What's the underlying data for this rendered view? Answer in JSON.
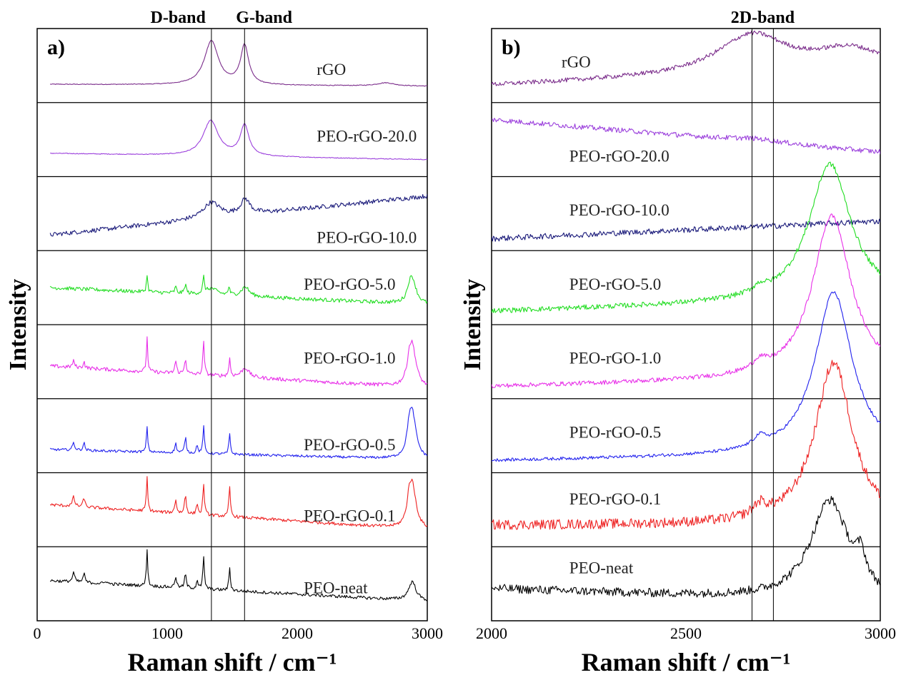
{
  "chart_data": [
    {
      "type": "line",
      "panel_label": "a)",
      "xlabel": "Raman shift / cm⁻¹",
      "ylabel": "Intensity",
      "xlim": [
        0,
        3000
      ],
      "ylim": [
        0,
        1
      ],
      "xticks": [
        0,
        1000,
        2000,
        3000
      ],
      "x_start": 100,
      "band_markers": [
        {
          "name": "D-band",
          "x": 1340
        },
        {
          "name": "G-band",
          "x": 1595
        }
      ],
      "series": [
        {
          "name": "rGO",
          "color": "#7b2d8b",
          "label_x": 2150,
          "label_pos": 0.45,
          "base_start": 0.2,
          "base_end": 0.17,
          "noise": 0.006,
          "peaks": [
            [
              1340,
              0.7,
              65
            ],
            [
              1595,
              0.62,
              38
            ],
            [
              2680,
              0.05,
              80
            ]
          ]
        },
        {
          "name": "PEO-rGO-20.0",
          "color": "#9b3fdc",
          "label_x": 2150,
          "label_pos": 0.55,
          "base_start": 0.28,
          "base_end": 0.18,
          "noise": 0.006,
          "peaks": [
            [
              1335,
              0.56,
              70
            ],
            [
              1595,
              0.49,
              40
            ]
          ]
        },
        {
          "name": "PEO-rGO-10.0",
          "color": "#1a1a7a",
          "label_x": 2150,
          "label_pos": 0.18,
          "base_start": 0.16,
          "base_end": 0.78,
          "noise": 0.035,
          "peaks": [
            [
              1340,
              0.25,
              80
            ],
            [
              1600,
              0.24,
              45
            ]
          ]
        },
        {
          "name": "PEO-rGO-5.0",
          "color": "#22dd22",
          "label_x": 2050,
          "label_pos": 0.55,
          "base_start": 0.5,
          "base_end": 0.23,
          "noise": 0.03,
          "peaks": [
            [
              845,
              0.28,
              6
            ],
            [
              1065,
              0.1,
              8
            ],
            [
              1140,
              0.15,
              8
            ],
            [
              1280,
              0.25,
              7
            ],
            [
              1340,
              0.1,
              50
            ],
            [
              1475,
              0.13,
              7
            ],
            [
              1600,
              0.15,
              35
            ],
            [
              2885,
              0.4,
              35
            ],
            [
              2860,
              0.1,
              18
            ]
          ]
        },
        {
          "name": "PEO-rGO-1.0",
          "color": "#e830e8",
          "label_x": 2050,
          "label_pos": 0.55,
          "base_start": 0.43,
          "base_end": 0.08,
          "noise": 0.03,
          "peaks": [
            [
              845,
              0.55,
              6
            ],
            [
              1065,
              0.2,
              8
            ],
            [
              1140,
              0.25,
              8
            ],
            [
              1280,
              0.52,
              7
            ],
            [
              1480,
              0.28,
              7
            ],
            [
              1600,
              0.15,
              35
            ],
            [
              2885,
              0.65,
              35
            ],
            [
              2860,
              0.2,
              18
            ],
            [
              280,
              0.1,
              10
            ],
            [
              360,
              0.1,
              8
            ]
          ]
        },
        {
          "name": "PEO-rGO-0.5",
          "color": "#2222ee",
          "label_x": 2050,
          "label_pos": 0.38,
          "base_start": 0.28,
          "base_end": 0.12,
          "noise": 0.02,
          "peaks": [
            [
              845,
              0.42,
              6
            ],
            [
              1065,
              0.15,
              8
            ],
            [
              1140,
              0.25,
              8
            ],
            [
              1230,
              0.15,
              6
            ],
            [
              1280,
              0.43,
              7
            ],
            [
              1480,
              0.32,
              7
            ],
            [
              2885,
              0.72,
              35
            ],
            [
              2860,
              0.25,
              18
            ],
            [
              280,
              0.12,
              10
            ],
            [
              360,
              0.12,
              8
            ]
          ]
        },
        {
          "name": "PEO-rGO-0.1",
          "color": "#ee2222",
          "label_x": 2050,
          "label_pos": 0.42,
          "base_start": 0.58,
          "base_end": 0.18,
          "noise": 0.025,
          "peaks": [
            [
              845,
              0.55,
              6
            ],
            [
              1065,
              0.22,
              8
            ],
            [
              1140,
              0.3,
              8
            ],
            [
              1230,
              0.2,
              6
            ],
            [
              1280,
              0.5,
              7
            ],
            [
              1480,
              0.48,
              7
            ],
            [
              2885,
              0.68,
              35
            ],
            [
              2860,
              0.25,
              18
            ],
            [
              280,
              0.15,
              10
            ],
            [
              360,
              0.15,
              8
            ]
          ]
        },
        {
          "name": "PEO-neat",
          "color": "#000000",
          "label_x": 2050,
          "label_pos": 0.45,
          "base_start": 0.55,
          "base_end": 0.22,
          "noise": 0.025,
          "peaks": [
            [
              845,
              0.6,
              6
            ],
            [
              1065,
              0.18,
              8
            ],
            [
              1140,
              0.22,
              8
            ],
            [
              1230,
              0.15,
              6
            ],
            [
              1280,
              0.5,
              7
            ],
            [
              1480,
              0.35,
              7
            ],
            [
              2885,
              0.3,
              35
            ],
            [
              280,
              0.15,
              10
            ],
            [
              360,
              0.15,
              8
            ],
            [
              530,
              0.05,
              8
            ]
          ]
        }
      ]
    },
    {
      "type": "line",
      "panel_label": "b)",
      "xlabel": "Raman shift / cm⁻¹",
      "ylabel": "Intensity",
      "xlim": [
        2000,
        3000
      ],
      "ylim": [
        0,
        1
      ],
      "xticks": [
        2000,
        2500,
        3000
      ],
      "x_start": 2000,
      "band_markers": [
        {
          "name": "2D-band",
          "x": 2670
        },
        {
          "name": "",
          "x": 2725
        }
      ],
      "series": [
        {
          "name": "rGO",
          "color": "#7b2d8b",
          "label_x": 2180,
          "label_pos": 0.55,
          "base_start": 0.18,
          "base_end": 0.45,
          "noise": 0.035,
          "peaks": [
            [
              2670,
              0.62,
              110
            ],
            [
              2920,
              0.3,
              100
            ]
          ]
        },
        {
          "name": "PEO-rGO-20.0",
          "color": "#9b3fdc",
          "label_x": 2200,
          "label_pos": 0.28,
          "base_start": 0.82,
          "base_end": 0.3,
          "noise": 0.04,
          "peaks": [
            [
              2680,
              0.05,
              80
            ]
          ]
        },
        {
          "name": "PEO-rGO-10.0",
          "color": "#1a1a7a",
          "label_x": 2200,
          "label_pos": 0.55,
          "base_start": 0.1,
          "base_end": 0.38,
          "noise": 0.045,
          "peaks": []
        },
        {
          "name": "PEO-rGO-5.0",
          "color": "#22dd22",
          "label_x": 2200,
          "label_pos": 0.55,
          "base_start": 0.12,
          "base_end": 0.3,
          "noise": 0.04,
          "peaks": [
            [
              2870,
              2.2,
              65
            ],
            [
              2690,
              0.1,
              20
            ]
          ]
        },
        {
          "name": "PEO-rGO-1.0",
          "color": "#e830e8",
          "label_x": 2200,
          "label_pos": 0.55,
          "base_start": 0.1,
          "base_end": 0.25,
          "noise": 0.035,
          "peaks": [
            [
              2875,
              2.6,
              60
            ],
            [
              2690,
              0.15,
              20
            ]
          ]
        },
        {
          "name": "PEO-rGO-0.5",
          "color": "#2222ee",
          "label_x": 2200,
          "label_pos": 0.55,
          "base_start": 0.1,
          "base_end": 0.2,
          "noise": 0.025,
          "peaks": [
            [
              2880,
              2.6,
              58
            ],
            [
              2690,
              0.15,
              20
            ]
          ]
        },
        {
          "name": "PEO-rGO-0.1",
          "color": "#ee2222",
          "label_x": 2200,
          "label_pos": 0.65,
          "base_start": 0.25,
          "base_end": 0.25,
          "noise": 0.08,
          "peaks": [
            [
              2880,
              2.6,
              58
            ],
            [
              2690,
              0.18,
              20
            ]
          ]
        },
        {
          "name": "PEO-neat",
          "color": "#000000",
          "label_x": 2200,
          "label_pos": 0.72,
          "base_start": 0.42,
          "base_end": 0.2,
          "noise": 0.07,
          "peaks": [
            [
              2870,
              1.6,
              60
            ],
            [
              2950,
              0.4,
              15
            ]
          ]
        }
      ]
    }
  ]
}
